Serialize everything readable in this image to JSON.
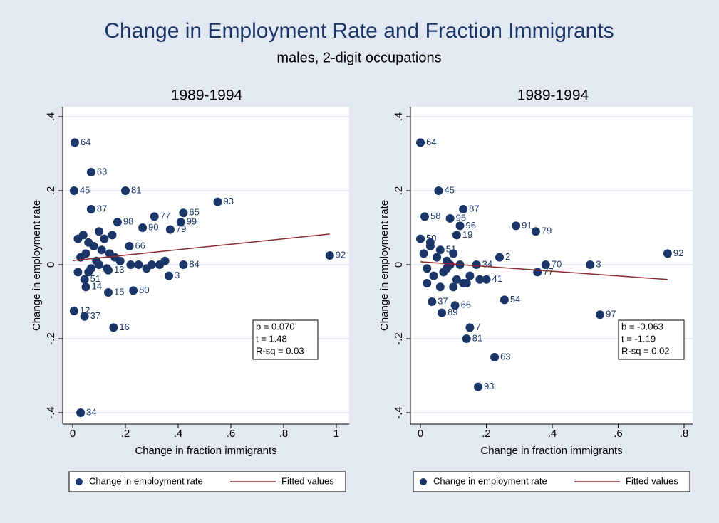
{
  "title": "Change in Employment Rate and Fraction Immigrants",
  "subtitle": "males, 2-digit occupations",
  "chart_data": [
    {
      "type": "scatter",
      "title": "1989-1994",
      "xlabel": "Change in fraction immigrants",
      "ylabel": "Change in employment rate",
      "xlim": [
        0,
        1
      ],
      "ylim": [
        -0.4,
        0.4
      ],
      "xticks": [
        0,
        {
          "value": 0.2,
          "label": ".2"
        },
        {
          "value": 0.4,
          "label": ".4"
        },
        {
          "value": 0.6,
          "label": ".6"
        },
        {
          "value": 0.8,
          "label": ".8"
        },
        1
      ],
      "yticks": [
        {
          "value": -0.4,
          "label": "-.4"
        },
        {
          "value": -0.2,
          "label": "-.2"
        },
        0,
        {
          "value": 0.2,
          "label": ".2"
        },
        {
          "value": 0.4,
          "label": ".4"
        }
      ],
      "grid": true,
      "annotations": [
        "b = 0.070",
        "t = 1.48",
        "R-sq = 0.03"
      ],
      "series": [
        {
          "name": "Change in employment rate",
          "color": "#1a3668",
          "x": [
            0.008,
            0.07,
            0.005,
            0.2,
            0.55,
            0.07,
            0.42,
            0.31,
            0.41,
            0.17,
            0.37,
            0.265,
            0.975,
            0.42,
            0.365,
            0.23,
            0.135,
            0.05,
            0.155,
            0.005,
            0.045,
            0.03,
            0.135,
            0.045,
            0.215,
            0.02,
            0.04,
            0.06,
            0.08,
            0.1,
            0.12,
            0.03,
            0.05,
            0.09,
            0.11,
            0.14,
            0.16,
            0.07,
            0.02,
            0.1,
            0.13,
            0.18,
            0.22,
            0.25,
            0.28,
            0.33,
            0.35,
            0.3,
            0.06,
            0.15
          ],
          "values": [
            0.33,
            0.25,
            0.2,
            0.2,
            0.17,
            0.15,
            0.14,
            0.13,
            0.115,
            0.115,
            0.095,
            0.1,
            0.025,
            0,
            -0.03,
            -0.07,
            -0.075,
            -0.06,
            -0.17,
            -0.125,
            -0.14,
            -0.4,
            -0.015,
            -0.04,
            0.05,
            0.07,
            0.08,
            0.06,
            0.05,
            0.09,
            0.07,
            0.02,
            0.03,
            0.01,
            0.04,
            0.03,
            0.02,
            -0.01,
            -0.02,
            0.0,
            -0.01,
            0.01,
            0.0,
            0.0,
            -0.01,
            0.0,
            0.01,
            0.0,
            -0.02,
            0.08
          ],
          "labels": [
            "64",
            "63",
            "45",
            "81",
            "93",
            "87",
            "65",
            "77",
            "99",
            "98",
            "79",
            "90",
            "92",
            "84",
            "3",
            "80",
            "15",
            "14",
            "16",
            "12",
            "37",
            "34",
            "13",
            "51",
            "66",
            null,
            null,
            null,
            null,
            null,
            null,
            null,
            null,
            null,
            null,
            null,
            null,
            null,
            null,
            null,
            null,
            null,
            null,
            null,
            null,
            null,
            null,
            null,
            null,
            null
          ]
        },
        {
          "name": "Fitted values",
          "type": "line",
          "color": "#8b2a2a",
          "x": [
            0,
            0.975
          ],
          "values": [
            0.011,
            0.083
          ]
        }
      ]
    },
    {
      "type": "scatter",
      "title": "1989-1994",
      "xlabel": "Change in fraction immigrants",
      "ylabel": "Change in employment rate",
      "xlim": [
        0,
        0.8
      ],
      "ylim": [
        -0.4,
        0.4
      ],
      "xticks": [
        0,
        {
          "value": 0.2,
          "label": ".2"
        },
        {
          "value": 0.4,
          "label": ".4"
        },
        {
          "value": 0.6,
          "label": ".6"
        },
        {
          "value": 0.8,
          "label": ".8"
        }
      ],
      "yticks": [
        {
          "value": -0.4,
          "label": "-.4"
        },
        {
          "value": -0.2,
          "label": "-.2"
        },
        0,
        {
          "value": 0.2,
          "label": ".2"
        },
        {
          "value": 0.4,
          "label": ".4"
        }
      ],
      "grid": true,
      "annotations": [
        "b = -0.063",
        "t = -1.19",
        "R-sq = 0.02"
      ],
      "series": [
        {
          "name": "Change in employment rate",
          "color": "#1a3668",
          "x": [
            0,
            0.055,
            0.013,
            0.13,
            0.09,
            0.12,
            0.11,
            0.29,
            0.35,
            0,
            0.75,
            0.24,
            0.38,
            0.515,
            0.355,
            0.255,
            0.545,
            0.035,
            0.105,
            0.065,
            0.15,
            0.14,
            0.225,
            0.175,
            0.2,
            0.17,
            0.06,
            0.01,
            0.03,
            0.05,
            0.08,
            0.1,
            0.12,
            0.02,
            0.04,
            0.07,
            0.09,
            0.11,
            0.13,
            0.15,
            0.02,
            0.06,
            0.1,
            0.14,
            0.18,
            0.03,
            0.08
          ],
          "values": [
            0.33,
            0.2,
            0.13,
            0.15,
            0.125,
            0.105,
            0.08,
            0.105,
            0.09,
            0.07,
            0.03,
            0.02,
            0,
            0,
            -0.02,
            -0.095,
            -0.135,
            -0.1,
            -0.11,
            -0.13,
            -0.17,
            -0.2,
            -0.25,
            -0.33,
            -0.04,
            0,
            0.04,
            0.03,
            0.05,
            0.02,
            0.01,
            0.03,
            0.0,
            -0.01,
            -0.03,
            -0.02,
            0.0,
            -0.04,
            -0.05,
            -0.03,
            -0.05,
            -0.06,
            -0.06,
            -0.05,
            -0.04,
            0.06,
            -0.01
          ],
          "labels": [
            "64",
            "45",
            "58",
            "87",
            "95",
            "96",
            "19",
            "91",
            "79",
            "50",
            "92",
            "2",
            "70",
            "3",
            "77",
            "54",
            "97",
            "37",
            "66",
            "89",
            "7",
            "81",
            "63",
            "93",
            "41",
            "34",
            "51",
            null,
            null,
            null,
            null,
            null,
            null,
            null,
            null,
            null,
            null,
            null,
            null,
            null,
            null,
            null,
            null,
            null,
            null,
            null,
            null
          ]
        },
        {
          "name": "Fitted values",
          "type": "line",
          "color": "#8b2a2a",
          "x": [
            0,
            0.75
          ],
          "values": [
            0.008,
            -0.04
          ]
        }
      ]
    }
  ]
}
